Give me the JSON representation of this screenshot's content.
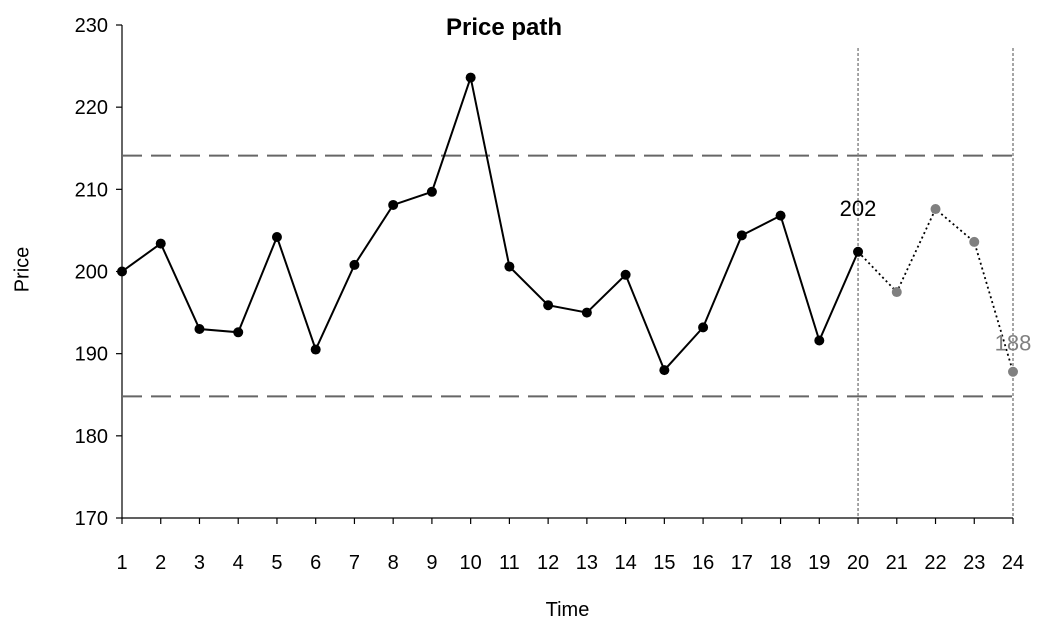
{
  "chart_data": {
    "type": "line",
    "title": "Price path",
    "xlabel": "Time",
    "ylabel": "Price",
    "x": [
      1,
      2,
      3,
      4,
      5,
      6,
      7,
      8,
      9,
      10,
      11,
      12,
      13,
      14,
      15,
      16,
      17,
      18,
      19,
      20,
      21,
      22,
      23,
      24
    ],
    "xlim": [
      1,
      24
    ],
    "ylim": [
      170,
      230
    ],
    "yticks": [
      170,
      180,
      190,
      200,
      210,
      220,
      230
    ],
    "series": [
      {
        "style": "solid",
        "color": "#000000",
        "x": [
          1,
          2,
          3,
          4,
          5,
          6,
          7,
          8,
          9,
          10,
          11,
          12,
          13,
          14,
          15,
          16,
          17,
          18,
          19,
          20
        ],
        "values": [
          200.0,
          203.4,
          193.0,
          192.6,
          204.2,
          190.5,
          200.8,
          208.1,
          209.7,
          223.6,
          200.6,
          195.9,
          195.0,
          199.6,
          188.0,
          193.2,
          204.4,
          206.8,
          191.6,
          202.4
        ]
      },
      {
        "style": "dotted",
        "color": "#808080",
        "x": [
          20,
          21,
          22,
          23,
          24
        ],
        "values": [
          202.4,
          197.5,
          207.6,
          203.6,
          187.8
        ]
      }
    ],
    "reference_lines": [
      {
        "orientation": "horizontal",
        "value": 214.1,
        "style": "dashed"
      },
      {
        "orientation": "horizontal",
        "value": 184.8,
        "style": "dashed"
      },
      {
        "orientation": "vertical",
        "value": 20,
        "style": "dotted"
      },
      {
        "orientation": "vertical",
        "value": 24,
        "style": "dotted"
      }
    ],
    "annotations": [
      {
        "text": "202",
        "x": 20,
        "y": 202.4,
        "color": "#000000"
      },
      {
        "text": "188",
        "x": 24,
        "y": 187.8,
        "color": "#808080"
      }
    ],
    "grid": false,
    "legend": "none"
  }
}
